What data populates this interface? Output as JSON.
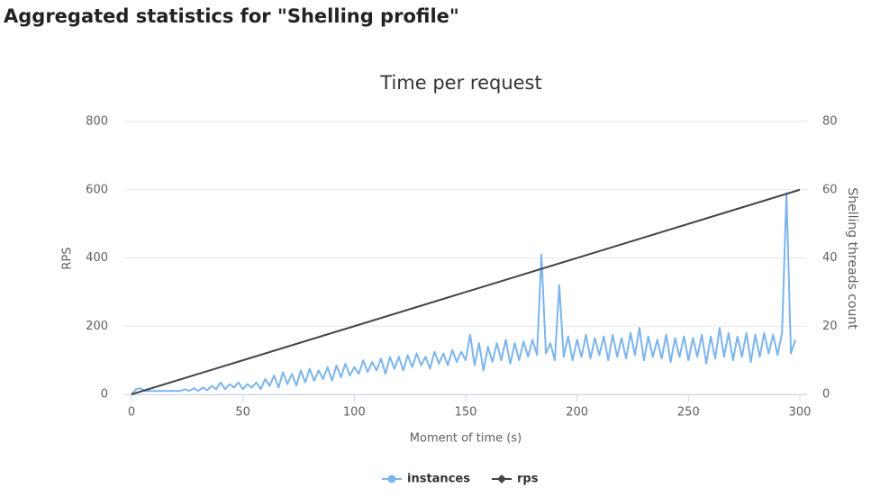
{
  "page_title": "Aggregated statistics for \"Shelling profile\"",
  "chart_data": {
    "type": "line",
    "title": "Time per request",
    "x_label": "Moment of time (s)",
    "y_label": "RPS",
    "y2_label": "Shelling threads count",
    "xlim": [
      0,
      300
    ],
    "xticks": [
      0,
      50,
      100,
      150,
      200,
      250,
      300
    ],
    "ylim": [
      0,
      800
    ],
    "yticks": [
      0,
      200,
      400,
      600,
      800
    ],
    "y2lim": [
      0,
      80
    ],
    "y2ticks": [
      0,
      20,
      40,
      60,
      80
    ],
    "grid": true,
    "legend": "bottom",
    "series": [
      {
        "name": "instances",
        "color": "#7cb5ec",
        "x": [
          0,
          2,
          4,
          6,
          8,
          10,
          12,
          14,
          16,
          18,
          20,
          22,
          24,
          26,
          28,
          30,
          32,
          34,
          36,
          38,
          40,
          42,
          44,
          46,
          48,
          50,
          52,
          54,
          56,
          58,
          60,
          62,
          64,
          66,
          68,
          70,
          72,
          74,
          76,
          78,
          80,
          82,
          84,
          86,
          88,
          90,
          92,
          94,
          96,
          98,
          100,
          102,
          104,
          106,
          108,
          110,
          112,
          114,
          116,
          118,
          120,
          122,
          124,
          126,
          128,
          130,
          132,
          134,
          136,
          138,
          140,
          142,
          144,
          146,
          148,
          150,
          152,
          154,
          156,
          158,
          160,
          162,
          164,
          166,
          168,
          170,
          172,
          174,
          176,
          178,
          180,
          182,
          184,
          186,
          188,
          190,
          192,
          194,
          196,
          198,
          200,
          202,
          204,
          206,
          208,
          210,
          212,
          214,
          216,
          218,
          220,
          222,
          224,
          226,
          228,
          230,
          232,
          234,
          236,
          238,
          240,
          242,
          244,
          246,
          248,
          250,
          252,
          254,
          256,
          258,
          260,
          262,
          264,
          266,
          268,
          270,
          272,
          274,
          276,
          278,
          280,
          282,
          284,
          286,
          288,
          290,
          292,
          294,
          296,
          298
        ],
        "values": [
          0,
          15,
          18,
          10,
          10,
          10,
          10,
          10,
          10,
          10,
          10,
          10,
          15,
          10,
          18,
          10,
          20,
          12,
          25,
          15,
          35,
          15,
          30,
          20,
          35,
          15,
          30,
          20,
          35,
          15,
          45,
          25,
          55,
          20,
          65,
          30,
          60,
          25,
          70,
          35,
          75,
          40,
          70,
          45,
          80,
          40,
          85,
          50,
          90,
          55,
          80,
          60,
          100,
          65,
          95,
          70,
          105,
          60,
          110,
          75,
          110,
          70,
          115,
          80,
          120,
          85,
          110,
          75,
          125,
          90,
          120,
          85,
          130,
          95,
          125,
          100,
          175,
          85,
          150,
          70,
          140,
          95,
          150,
          100,
          160,
          90,
          150,
          100,
          155,
          110,
          160,
          115,
          410,
          120,
          150,
          100,
          320,
          110,
          170,
          100,
          160,
          110,
          175,
          105,
          165,
          115,
          170,
          100,
          175,
          110,
          165,
          105,
          180,
          115,
          195,
          100,
          170,
          110,
          160,
          105,
          175,
          95,
          165,
          110,
          170,
          100,
          165,
          110,
          175,
          90,
          170,
          105,
          195,
          110,
          180,
          100,
          170,
          110,
          180,
          95,
          175,
          110,
          180,
          120,
          175,
          115,
          180,
          590,
          120,
          160
        ]
      },
      {
        "name": "rps",
        "color": "#434348",
        "axis": "y2",
        "x": [
          0,
          300
        ],
        "values": [
          0,
          60
        ]
      }
    ]
  }
}
